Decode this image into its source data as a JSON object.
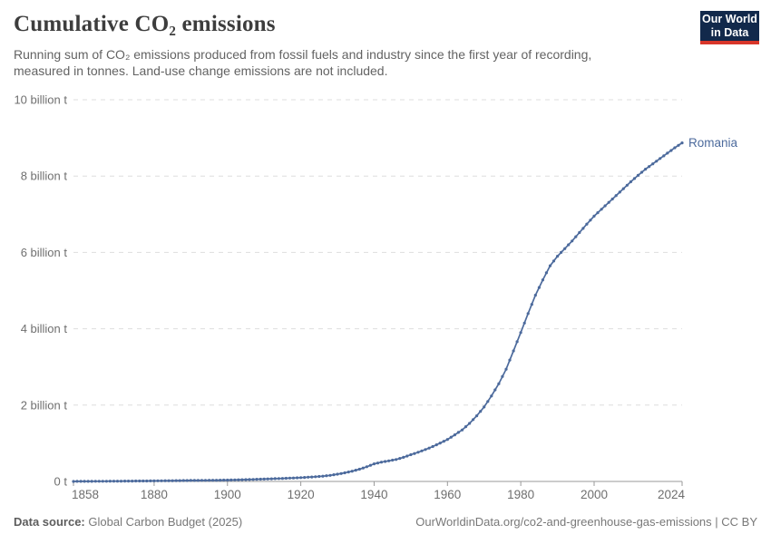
{
  "header": {
    "title": "Cumulative CO₂ emissions",
    "subtitle": "Running sum of CO₂ emissions produced from fossil fuels and industry since the first year of recording, measured in tonnes. Land-use change emissions are not included."
  },
  "logo": {
    "line1": "Our World",
    "line2": "in Data"
  },
  "footer": {
    "source_label": "Data source:",
    "source_value": "Global Carbon Budget (2025)",
    "attribution": "OurWorldinData.org/co2-and-greenhouse-gas-emissions | CC BY"
  },
  "chart_data": {
    "type": "line",
    "title": "Cumulative CO₂ emissions",
    "entity_label": "Romania",
    "values_unit": "billion tonnes",
    "xlim": [
      1858,
      2024
    ],
    "ylim_billion_t": [
      0,
      10
    ],
    "grid": "on",
    "legend_position": "end-of-line",
    "x": [
      1858,
      1860,
      1862,
      1864,
      1866,
      1868,
      1870,
      1872,
      1874,
      1876,
      1878,
      1880,
      1882,
      1884,
      1886,
      1888,
      1890,
      1892,
      1894,
      1896,
      1898,
      1900,
      1902,
      1904,
      1906,
      1908,
      1910,
      1912,
      1914,
      1916,
      1918,
      1920,
      1922,
      1924,
      1926,
      1928,
      1930,
      1932,
      1934,
      1936,
      1938,
      1940,
      1942,
      1944,
      1946,
      1948,
      1950,
      1952,
      1954,
      1956,
      1958,
      1960,
      1962,
      1964,
      1966,
      1968,
      1970,
      1972,
      1974,
      1976,
      1978,
      1980,
      1982,
      1984,
      1986,
      1988,
      1990,
      1992,
      1994,
      1996,
      1998,
      2000,
      2002,
      2004,
      2006,
      2008,
      2010,
      2012,
      2014,
      2016,
      2018,
      2020,
      2022,
      2024
    ],
    "values_billion_t": [
      0.001,
      0.002,
      0.003,
      0.004,
      0.005,
      0.006,
      0.007,
      0.009,
      0.01,
      0.012,
      0.013,
      0.015,
      0.017,
      0.019,
      0.021,
      0.023,
      0.025,
      0.027,
      0.029,
      0.031,
      0.033,
      0.036,
      0.04,
      0.045,
      0.05,
      0.056,
      0.062,
      0.069,
      0.076,
      0.083,
      0.091,
      0.1,
      0.111,
      0.123,
      0.138,
      0.16,
      0.19,
      0.225,
      0.268,
      0.32,
      0.385,
      0.46,
      0.505,
      0.54,
      0.575,
      0.632,
      0.7,
      0.765,
      0.835,
      0.915,
      1.005,
      1.1,
      1.22,
      1.35,
      1.52,
      1.72,
      1.95,
      2.24,
      2.56,
      2.94,
      3.42,
      3.9,
      4.4,
      4.88,
      5.28,
      5.65,
      5.9,
      6.1,
      6.3,
      6.52,
      6.74,
      6.95,
      7.13,
      7.31,
      7.49,
      7.67,
      7.85,
      8.02,
      8.18,
      8.32,
      8.46,
      8.6,
      8.74,
      8.87
    ],
    "x_ticks": [
      {
        "value": 1858,
        "label": "1858"
      },
      {
        "value": 1880,
        "label": "1880"
      },
      {
        "value": 1900,
        "label": "1900"
      },
      {
        "value": 1920,
        "label": "1920"
      },
      {
        "value": 1940,
        "label": "1940"
      },
      {
        "value": 1960,
        "label": "1960"
      },
      {
        "value": 1980,
        "label": "1980"
      },
      {
        "value": 2000,
        "label": "2000"
      },
      {
        "value": 2024,
        "label": "2024"
      }
    ],
    "y_ticks": [
      {
        "value": 0,
        "label": "0 t"
      },
      {
        "value": 2,
        "label": "2 billion t"
      },
      {
        "value": 4,
        "label": "4 billion t"
      },
      {
        "value": 6,
        "label": "6 billion t"
      },
      {
        "value": 8,
        "label": "8 billion t"
      },
      {
        "value": 10,
        "label": "10 billion t"
      }
    ],
    "colors": {
      "line": "#4c6a9c",
      "entity_label": "#4c6a9c",
      "grid": "#dedede",
      "axis": "#9a9a9a",
      "tick_text": "#6f6f6f"
    }
  }
}
